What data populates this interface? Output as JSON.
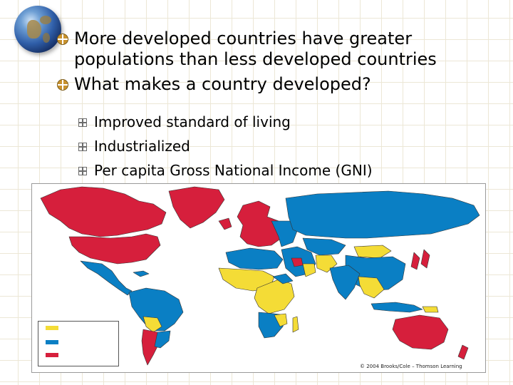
{
  "slide": {
    "bullets": [
      "More developed countries have greater populations than less developed countries",
      "What makes a country developed?"
    ],
    "sub_bullets": [
      "Improved standard of living",
      "Industrialized",
      "Per capita Gross National Income (GNI)"
    ]
  },
  "map": {
    "credit": "© 2004 Brooks/Cole – Thomson Learning",
    "colors": {
      "ocean": "#ffffff",
      "developed": "#d61f3c",
      "middle": "#0a7fc4",
      "least": "#f4dc36",
      "border": "#333333"
    },
    "legend_colors": [
      "#f4dc36",
      "#0a7fc4",
      "#d61f3c"
    ]
  }
}
